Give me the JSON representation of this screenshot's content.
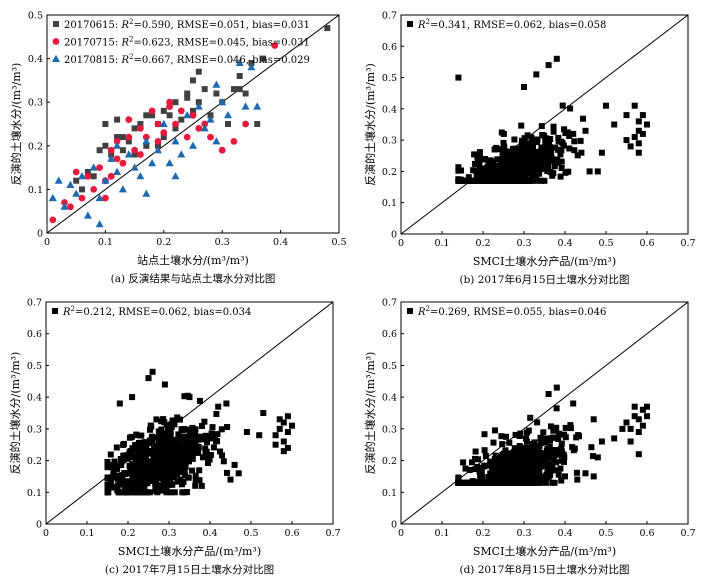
{
  "chart_data": [
    {
      "id": "a",
      "type": "scatter",
      "caption": "(a) 反演结果与站点土壤水分对比图",
      "xlabel": "站点土壤水分/(m³/m³)",
      "ylabel": "反演的土壤水分/(m³/m³)",
      "xlim": [
        0,
        0.5
      ],
      "ylim": [
        0,
        0.5
      ],
      "xticks": [
        "0",
        "0.1",
        "0.2",
        "0.3",
        "0.4",
        "0.5"
      ],
      "yticks": [
        "0",
        "0.1",
        "0.2",
        "0.3",
        "0.4",
        "0.5"
      ],
      "one_to_one_line": true,
      "legend_position": "top-left",
      "series": [
        {
          "name": "20170615",
          "r2": "0.590",
          "rmse": "0.051",
          "bias": "0.031",
          "marker": "square",
          "color": "#404040",
          "x": [
            0.05,
            0.06,
            0.07,
            0.08,
            0.09,
            0.1,
            0.1,
            0.11,
            0.12,
            0.12,
            0.13,
            0.14,
            0.15,
            0.15,
            0.16,
            0.17,
            0.17,
            0.18,
            0.19,
            0.2,
            0.2,
            0.21,
            0.22,
            0.22,
            0.23,
            0.24,
            0.25,
            0.25,
            0.26,
            0.27,
            0.28,
            0.29,
            0.3,
            0.31,
            0.32,
            0.33,
            0.34,
            0.35,
            0.36,
            0.37,
            0.48,
            0.24,
            0.19,
            0.26,
            0.13,
            0.33
          ],
          "y": [
            0.12,
            0.1,
            0.14,
            0.13,
            0.19,
            0.2,
            0.25,
            0.18,
            0.22,
            0.26,
            0.22,
            0.21,
            0.24,
            0.18,
            0.25,
            0.27,
            0.2,
            0.27,
            0.25,
            0.28,
            0.22,
            0.27,
            0.24,
            0.3,
            0.26,
            0.32,
            0.28,
            0.35,
            0.3,
            0.33,
            0.27,
            0.32,
            0.3,
            0.25,
            0.33,
            0.36,
            0.32,
            0.39,
            0.25,
            0.4,
            0.47,
            0.31,
            0.2,
            0.37,
            0.19,
            0.33
          ]
        },
        {
          "name": "20170715",
          "r2": "0.623",
          "rmse": "0.045",
          "bias": "0.031",
          "marker": "circle",
          "color": "#e8193c",
          "x": [
            0.01,
            0.03,
            0.04,
            0.05,
            0.06,
            0.07,
            0.08,
            0.09,
            0.1,
            0.1,
            0.11,
            0.12,
            0.12,
            0.13,
            0.14,
            0.15,
            0.16,
            0.17,
            0.18,
            0.19,
            0.19,
            0.2,
            0.21,
            0.22,
            0.23,
            0.24,
            0.25,
            0.26,
            0.28,
            0.3,
            0.32,
            0.39,
            0.34,
            0.11,
            0.16,
            0.14,
            0.21,
            0.27
          ],
          "y": [
            0.03,
            0.07,
            0.06,
            0.14,
            0.08,
            0.13,
            0.1,
            0.15,
            0.12,
            0.08,
            0.19,
            0.17,
            0.21,
            0.16,
            0.22,
            0.19,
            0.24,
            0.22,
            0.28,
            0.21,
            0.25,
            0.23,
            0.3,
            0.25,
            0.28,
            0.22,
            0.27,
            0.24,
            0.22,
            0.19,
            0.21,
            0.43,
            0.25,
            0.13,
            0.18,
            0.26,
            0.29,
            0.25
          ]
        },
        {
          "name": "20170815",
          "r2": "0.667",
          "rmse": "0.046",
          "bias": "0.029",
          "marker": "triangle",
          "color": "#1d69b0",
          "x": [
            0.01,
            0.02,
            0.03,
            0.04,
            0.05,
            0.06,
            0.07,
            0.08,
            0.09,
            0.1,
            0.11,
            0.12,
            0.13,
            0.14,
            0.15,
            0.16,
            0.17,
            0.18,
            0.19,
            0.2,
            0.21,
            0.22,
            0.23,
            0.24,
            0.25,
            0.26,
            0.27,
            0.28,
            0.29,
            0.3,
            0.31,
            0.33,
            0.34,
            0.35,
            0.36,
            0.17,
            0.12,
            0.22,
            0.09,
            0.29
          ],
          "y": [
            0.08,
            0.12,
            0.06,
            0.11,
            0.09,
            0.13,
            0.04,
            0.15,
            0.08,
            0.12,
            0.17,
            0.14,
            0.1,
            0.18,
            0.15,
            0.13,
            0.21,
            0.16,
            0.19,
            0.25,
            0.16,
            0.21,
            0.18,
            0.27,
            0.2,
            0.29,
            0.24,
            0.26,
            0.21,
            0.3,
            0.27,
            0.39,
            0.29,
            0.38,
            0.29,
            0.09,
            0.2,
            0.13,
            0.02,
            0.34
          ]
        }
      ]
    },
    {
      "id": "b",
      "type": "scatter",
      "caption": "(b) 2017年6月15日土壤水分对比图",
      "xlabel": "SMCI土壤水分产品/(m³/m³)",
      "ylabel": "反演的土壤水分/(m³/m³)",
      "xlim": [
        0,
        0.7
      ],
      "ylim": [
        0,
        0.7
      ],
      "xticks": [
        "0",
        "0.1",
        "0.2",
        "0.3",
        "0.4",
        "0.5",
        "0.6",
        "0.7"
      ],
      "yticks": [
        "0",
        "0.1",
        "0.2",
        "0.3",
        "0.4",
        "0.5",
        "0.6",
        "0.7"
      ],
      "one_to_one_line": true,
      "legend_position": "top-left",
      "series": [
        {
          "name": "",
          "r2": "0.341",
          "rmse": "0.062",
          "bias": "0.058",
          "marker": "square",
          "color": "#000000",
          "generated": {
            "seed": 11,
            "n": 520,
            "x_mean": 0.27,
            "x_sd": 0.06,
            "x_min": 0.14,
            "x_max": 0.47,
            "y_base": 0.21,
            "y_slope": 0.5,
            "y_sd": 0.04,
            "y_min": 0.17,
            "y_max": 0.57,
            "outliers": [
              [
                0.55,
                0.3
              ],
              [
                0.56,
                0.28
              ],
              [
                0.57,
                0.31
              ],
              [
                0.58,
                0.33
              ],
              [
                0.58,
                0.29
              ],
              [
                0.59,
                0.32
              ],
              [
                0.59,
                0.38
              ],
              [
                0.58,
                0.36
              ],
              [
                0.6,
                0.35
              ],
              [
                0.57,
                0.41
              ],
              [
                0.55,
                0.38
              ],
              [
                0.52,
                0.35
              ],
              [
                0.5,
                0.41
              ],
              [
                0.48,
                0.2
              ],
              [
                0.46,
                0.2
              ],
              [
                0.14,
                0.5
              ],
              [
                0.36,
                0.54
              ],
              [
                0.38,
                0.56
              ],
              [
                0.33,
                0.51
              ],
              [
                0.3,
                0.47
              ],
              [
                0.45,
                0.33
              ],
              [
                0.44,
                0.26
              ],
              [
                0.42,
                0.32
              ],
              [
                0.49,
                0.26
              ],
              [
                0.58,
                0.26
              ]
            ]
          }
        }
      ]
    },
    {
      "id": "c",
      "type": "scatter",
      "caption": "(c) 2017年7月15日土壤水分对比图",
      "xlabel": "SMCI土壤水分产品/(m³/m³)",
      "ylabel": "反演的土壤水分/(m³/m³)",
      "xlim": [
        0,
        0.7
      ],
      "ylim": [
        0,
        0.7
      ],
      "xticks": [
        "0",
        "0.1",
        "0.2",
        "0.3",
        "0.4",
        "0.5",
        "0.6",
        "0.7"
      ],
      "yticks": [
        "0",
        "0.1",
        "0.2",
        "0.3",
        "0.4",
        "0.5",
        "0.6",
        "0.7"
      ],
      "one_to_one_line": true,
      "legend_position": "top-left",
      "series": [
        {
          "name": "",
          "r2": "0.212",
          "rmse": "0.062",
          "bias": "0.034",
          "marker": "square",
          "color": "#000000",
          "generated": {
            "seed": 23,
            "n": 560,
            "x_mean": 0.27,
            "x_sd": 0.06,
            "x_min": 0.15,
            "x_max": 0.46,
            "y_base": 0.19,
            "y_slope": 0.45,
            "y_sd": 0.055,
            "y_min": 0.1,
            "y_max": 0.48,
            "outliers": [
              [
                0.56,
                0.28
              ],
              [
                0.57,
                0.3
              ],
              [
                0.58,
                0.26
              ],
              [
                0.58,
                0.32
              ],
              [
                0.59,
                0.29
              ],
              [
                0.59,
                0.24
              ],
              [
                0.6,
                0.31
              ],
              [
                0.57,
                0.33
              ],
              [
                0.56,
                0.25
              ],
              [
                0.58,
                0.23
              ],
              [
                0.53,
                0.35
              ],
              [
                0.52,
                0.28
              ],
              [
                0.49,
                0.29
              ],
              [
                0.47,
                0.16
              ],
              [
                0.45,
                0.14
              ],
              [
                0.44,
                0.38
              ],
              [
                0.42,
                0.37
              ],
              [
                0.38,
                0.12
              ],
              [
                0.35,
                0.4
              ],
              [
                0.25,
                0.46
              ],
              [
                0.26,
                0.48
              ],
              [
                0.29,
                0.44
              ],
              [
                0.21,
                0.4
              ],
              [
                0.18,
                0.38
              ],
              [
                0.59,
                0.34
              ]
            ]
          }
        }
      ]
    },
    {
      "id": "d",
      "type": "scatter",
      "caption": "(d) 2017年8月15日土壤水分对比图",
      "xlabel": "SMCI土壤水分产品/(m³/m³)",
      "ylabel": "反演的土壤水分/(m³/m³)",
      "xlim": [
        0,
        0.7
      ],
      "ylim": [
        0,
        0.7
      ],
      "xticks": [
        "0",
        "0.1",
        "0.2",
        "0.3",
        "0.4",
        "0.5",
        "0.6",
        "0.7"
      ],
      "yticks": [
        "0",
        "0.1",
        "0.2",
        "0.3",
        "0.4",
        "0.5",
        "0.6",
        "0.7"
      ],
      "one_to_one_line": true,
      "legend_position": "top-left",
      "series": [
        {
          "name": "",
          "r2": "0.269",
          "rmse": "0.055",
          "bias": "0.046",
          "marker": "square",
          "color": "#000000",
          "generated": {
            "seed": 37,
            "n": 540,
            "x_mean": 0.28,
            "x_sd": 0.065,
            "x_min": 0.14,
            "x_max": 0.47,
            "y_base": 0.17,
            "y_slope": 0.55,
            "y_sd": 0.05,
            "y_min": 0.13,
            "y_max": 0.43,
            "outliers": [
              [
                0.55,
                0.32
              ],
              [
                0.56,
                0.3
              ],
              [
                0.57,
                0.34
              ],
              [
                0.58,
                0.33
              ],
              [
                0.58,
                0.29
              ],
              [
                0.59,
                0.36
              ],
              [
                0.59,
                0.31
              ],
              [
                0.6,
                0.34
              ],
              [
                0.57,
                0.37
              ],
              [
                0.56,
                0.26
              ],
              [
                0.58,
                0.22
              ],
              [
                0.54,
                0.3
              ],
              [
                0.49,
                0.26
              ],
              [
                0.48,
                0.21
              ],
              [
                0.47,
                0.15
              ],
              [
                0.45,
                0.16
              ],
              [
                0.43,
                0.14
              ],
              [
                0.4,
                0.15
              ],
              [
                0.38,
                0.43
              ],
              [
                0.36,
                0.41
              ],
              [
                0.47,
                0.33
              ],
              [
                0.42,
                0.38
              ],
              [
                0.6,
                0.37
              ],
              [
                0.35,
                0.14
              ],
              [
                0.52,
                0.27
              ]
            ]
          }
        }
      ]
    }
  ]
}
